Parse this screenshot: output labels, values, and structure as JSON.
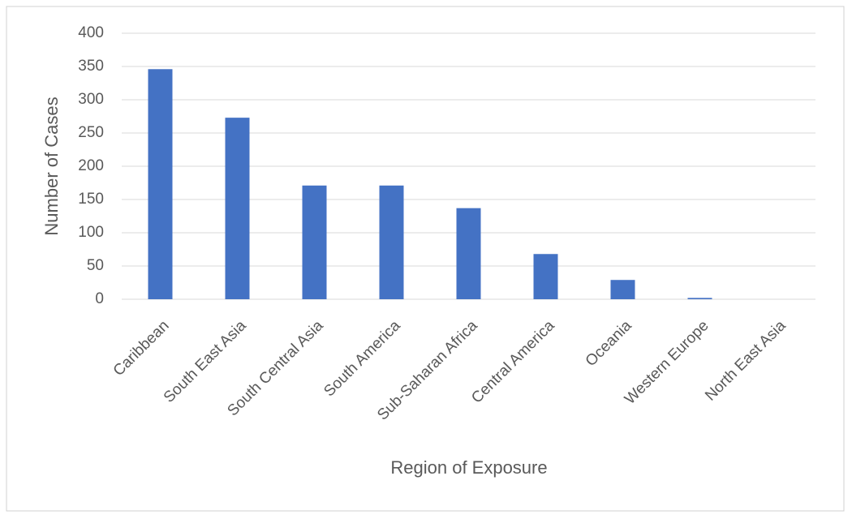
{
  "chart_data": {
    "type": "bar",
    "x_label": "Region of Exposure",
    "y_label": "Number of Cases",
    "categories": [
      "Caribbean",
      "South East Asia",
      "South Central Asia",
      "South America",
      "Sub-Saharan Africa",
      "Central America",
      "Oceania",
      "Western Europe",
      "North East Asia"
    ],
    "values": [
      346,
      273,
      171,
      171,
      137,
      68,
      29,
      2,
      0
    ],
    "color": "#4472c4",
    "ylim": [
      0,
      400
    ],
    "yticks": [
      0,
      50,
      100,
      150,
      200,
      250,
      300,
      350,
      400
    ],
    "grid": true
  }
}
